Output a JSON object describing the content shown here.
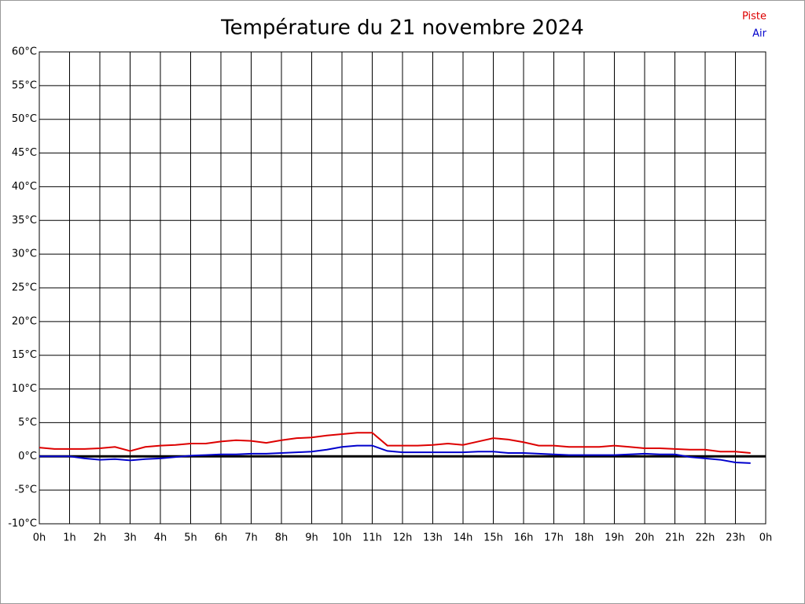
{
  "chart_data": {
    "type": "line",
    "title": "Température du 21 novembre 2024",
    "x": [
      0,
      0.5,
      1,
      1.5,
      2,
      2.5,
      3,
      3.5,
      4,
      4.5,
      5,
      5.5,
      6,
      6.5,
      7,
      7.5,
      8,
      8.5,
      9,
      9.5,
      10,
      10.5,
      11,
      11.5,
      12,
      12.5,
      13,
      13.5,
      14,
      14.5,
      15,
      15.5,
      16,
      16.5,
      17,
      17.5,
      18,
      18.5,
      19,
      19.5,
      20,
      20.5,
      21,
      21.5,
      22,
      22.5,
      23,
      23.5
    ],
    "series": [
      {
        "name": "Piste",
        "color": "#dd0000",
        "values": [
          1.3,
          1.1,
          1.1,
          1.1,
          1.2,
          1.4,
          0.8,
          1.4,
          1.6,
          1.7,
          1.9,
          1.9,
          2.2,
          2.4,
          2.3,
          2.0,
          2.4,
          2.7,
          2.8,
          3.1,
          3.3,
          3.5,
          3.5,
          1.6,
          1.6,
          1.6,
          1.7,
          1.9,
          1.7,
          2.2,
          2.7,
          2.5,
          2.1,
          1.6,
          1.6,
          1.4,
          1.4,
          1.4,
          1.6,
          1.4,
          1.2,
          1.2,
          1.1,
          1.0,
          1.0,
          0.7,
          0.7,
          0.5
        ]
      },
      {
        "name": "Air",
        "color": "#0000cc",
        "values": [
          0,
          0,
          0,
          -0.3,
          -0.5,
          -0.4,
          -0.6,
          -0.4,
          -0.3,
          -0.1,
          0.1,
          0.2,
          0.3,
          0.3,
          0.4,
          0.4,
          0.5,
          0.6,
          0.7,
          1.0,
          1.4,
          1.6,
          1.6,
          0.8,
          0.6,
          0.6,
          0.6,
          0.6,
          0.6,
          0.7,
          0.7,
          0.5,
          0.5,
          0.4,
          0.3,
          0.2,
          0.2,
          0.2,
          0.2,
          0.3,
          0.4,
          0.3,
          0.3,
          -0.1,
          -0.3,
          -0.5,
          -0.9,
          -1.0
        ]
      }
    ],
    "xlim": [
      0,
      24
    ],
    "xticks": [
      {
        "value": 0,
        "label": "0h"
      },
      {
        "value": 1,
        "label": "1h"
      },
      {
        "value": 2,
        "label": "2h"
      },
      {
        "value": 3,
        "label": "3h"
      },
      {
        "value": 4,
        "label": "4h"
      },
      {
        "value": 5,
        "label": "5h"
      },
      {
        "value": 6,
        "label": "6h"
      },
      {
        "value": 7,
        "label": "7h"
      },
      {
        "value": 8,
        "label": "8h"
      },
      {
        "value": 9,
        "label": "9h"
      },
      {
        "value": 10,
        "label": "10h"
      },
      {
        "value": 11,
        "label": "11h"
      },
      {
        "value": 12,
        "label": "12h"
      },
      {
        "value": 13,
        "label": "13h"
      },
      {
        "value": 14,
        "label": "14h"
      },
      {
        "value": 15,
        "label": "15h"
      },
      {
        "value": 16,
        "label": "16h"
      },
      {
        "value": 17,
        "label": "17h"
      },
      {
        "value": 18,
        "label": "18h"
      },
      {
        "value": 19,
        "label": "19h"
      },
      {
        "value": 20,
        "label": "20h"
      },
      {
        "value": 21,
        "label": "21h"
      },
      {
        "value": 22,
        "label": "22h"
      },
      {
        "value": 23,
        "label": "23h"
      },
      {
        "value": 24,
        "label": "0h"
      }
    ],
    "ylim": [
      -10,
      60
    ],
    "yticks": [
      {
        "value": -10,
        "label": "-10°C"
      },
      {
        "value": -5,
        "label": "-5°C"
      },
      {
        "value": 0,
        "label": "0°C"
      },
      {
        "value": 5,
        "label": "5°C"
      },
      {
        "value": 10,
        "label": "10°C"
      },
      {
        "value": 15,
        "label": "15°C"
      },
      {
        "value": 20,
        "label": "20°C"
      },
      {
        "value": 25,
        "label": "25°C"
      },
      {
        "value": 30,
        "label": "30°C"
      },
      {
        "value": 35,
        "label": "35°C"
      },
      {
        "value": 40,
        "label": "40°C"
      },
      {
        "value": 45,
        "label": "45°C"
      },
      {
        "value": 50,
        "label": "50°C"
      },
      {
        "value": 55,
        "label": "55°C"
      },
      {
        "value": 60,
        "label": "60°C"
      }
    ],
    "grid": true,
    "legend": "top-right"
  }
}
